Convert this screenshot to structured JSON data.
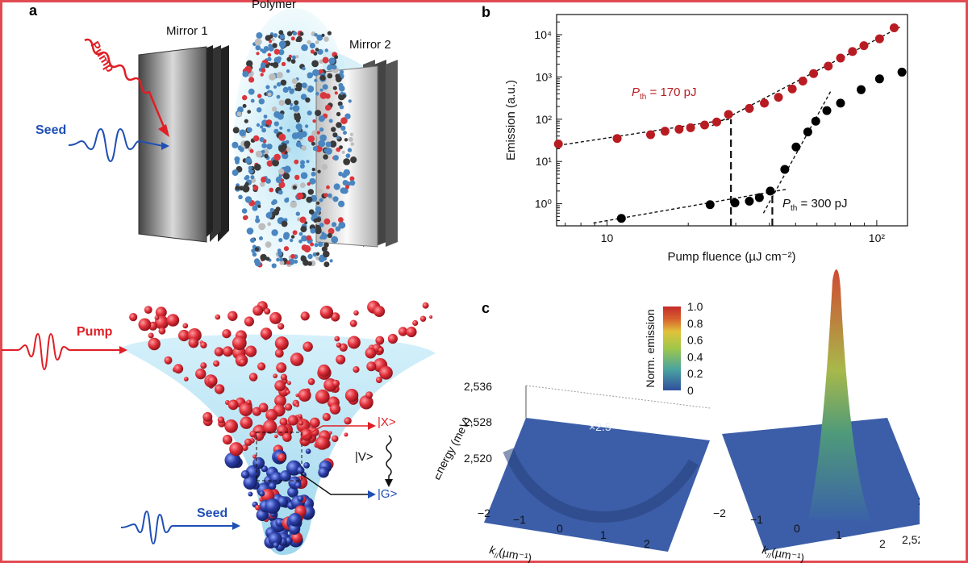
{
  "panels": {
    "a": "a",
    "b": "b",
    "c": "c"
  },
  "panel_a": {
    "top": {
      "mirror1": "Mirror 1",
      "polymer": "Polymer",
      "mirror2": "Mirror 2",
      "pump": "Pump",
      "seed": "Seed"
    },
    "bottom": {
      "pump": "Pump",
      "seed": "Seed",
      "x_state": "|X>",
      "v_state": "|V>",
      "g_state": "|G>"
    }
  },
  "colors": {
    "pump_red": "#e01e25",
    "seed_blue": "#1f4fb5",
    "dark_red": "#b81c22",
    "black": "#000000",
    "frame": "#e24a52"
  },
  "chart_data": [
    {
      "type": "scatter",
      "panel": "b",
      "xlabel": "Pump fluence (µJ cm⁻²)",
      "ylabel": "Emission (a.u.)",
      "xscale": "log",
      "yscale": "log",
      "xlim": [
        6.5,
        130
      ],
      "ylim": [
        0.3,
        30000
      ],
      "x_ticks": [
        "10",
        "10²"
      ],
      "y_ticks": [
        "10⁰",
        "10¹",
        "10²",
        "10³",
        "10⁴"
      ],
      "annotations": {
        "red_threshold_sub": "th",
        "red_threshold_rest": " = 170 pJ",
        "black_threshold_sub": "th",
        "black_threshold_rest": " = 300 pJ"
      },
      "series": [
        {
          "color": "#b81c22",
          "x": [
            6.6,
            10.9,
            14.5,
            16.4,
            18.5,
            20.4,
            23.0,
            25.5,
            28.2,
            33.7,
            38.3,
            43.2,
            48.6,
            53.2,
            58.3,
            66.1,
            73.4,
            81.3,
            89.6,
            102.4,
            116.0
          ],
          "y": [
            26,
            35,
            43,
            52,
            58,
            63,
            73,
            86,
            130,
            180,
            240,
            330,
            520,
            800,
            1200,
            1800,
            2800,
            4000,
            5500,
            8000,
            14500
          ]
        },
        {
          "color": "#000000",
          "x": [
            11.3,
            24.1,
            29.8,
            33.7,
            36.7,
            40.3,
            45.6,
            50.2,
            55.5,
            59.4,
            65.3,
            73.4,
            87.5,
            102.4,
            124.0
          ],
          "y": [
            0.45,
            0.95,
            1.05,
            1.15,
            1.4,
            2.0,
            6.5,
            22,
            50,
            90,
            160,
            240,
            500,
            900,
            1300
          ]
        }
      ],
      "fit_lines": [
        {
          "x": [
            6.6,
            28.5
          ],
          "y": [
            24,
            100
          ]
        },
        {
          "x": [
            24.5,
            124.0
          ],
          "y": [
            70,
            16000
          ]
        },
        {
          "x": [
            8.9,
            46.3
          ],
          "y": [
            0.35,
            2.2
          ]
        },
        {
          "x": [
            38.0,
            68.0
          ],
          "y": [
            0.6,
            500
          ]
        }
      ],
      "threshold_lines": [
        {
          "x": 28.8,
          "y_from": 0.3,
          "y_to": 100
        },
        {
          "x": 41.0,
          "y_from": 0.3,
          "y_to": 1.8
        }
      ]
    },
    {
      "type": "heatmap",
      "panel": "c",
      "xlabel": "k",
      "xlabel_sub": "//",
      "xlabel_unit": "(µm⁻¹)",
      "ylabel": "Energy (meV)",
      "x_ticks": [
        "−2",
        "−1",
        "0",
        "1",
        "2"
      ],
      "y_ticks": [
        "2,536",
        "2,528",
        "2,520"
      ],
      "multiplier": "×2.5",
      "colorbar": {
        "label": "Norm. emission",
        "ticks": [
          "1.0",
          "0.8",
          "0.6",
          "0.4",
          "0.2",
          "0"
        ],
        "colors": [
          "#2f4e9e",
          "#4aa3a0",
          "#9ec74a",
          "#e0c23a",
          "#d8622e",
          "#c42a2a"
        ]
      }
    }
  ]
}
